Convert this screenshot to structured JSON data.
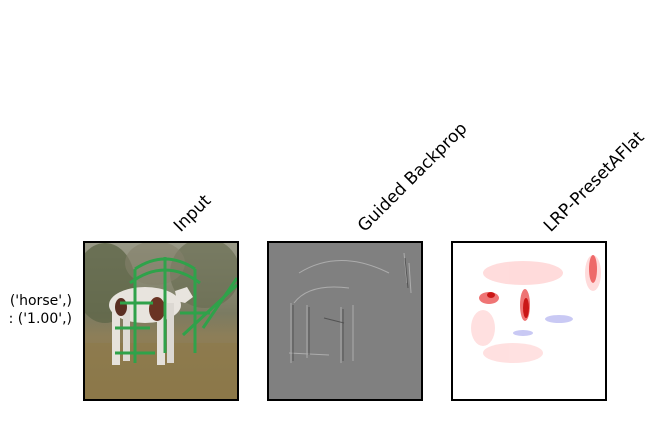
{
  "columns": [
    "Input",
    "Guided Backprop",
    "LRP-PresetAFlat"
  ],
  "row_label": {
    "line1": "('horse',)",
    "line2": ": ('1.00',)"
  },
  "panels": [
    {
      "name": "input-image",
      "description_icon": "horse-photo"
    },
    {
      "name": "guided-backprop-map",
      "description_icon": "gray-gradient-map"
    },
    {
      "name": "lrp-heatmap",
      "description_icon": "red-blue-heatmap"
    }
  ]
}
